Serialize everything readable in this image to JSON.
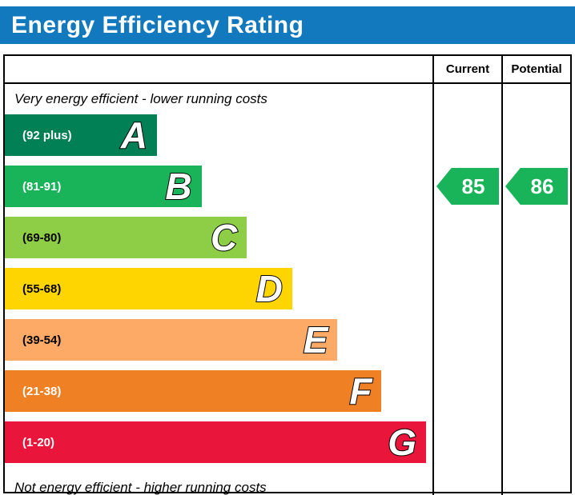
{
  "title": "Energy Efficiency Rating",
  "columns": {
    "current": "Current",
    "potential": "Potential"
  },
  "notes": {
    "top": "Very energy efficient - lower running costs",
    "bottom": "Not energy efficient - higher running costs"
  },
  "colors": {
    "title_bar_bg": "#1279be",
    "title_text": "#ffffff",
    "border": "#000000",
    "arrow_text": "#ffffff"
  },
  "chart_data": {
    "type": "bar",
    "subtype": "epc-energy-efficiency-rating",
    "orientation": "horizontal",
    "bands": [
      {
        "letter": "A",
        "range": "(92 plus)",
        "score_range": [
          92,
          100
        ],
        "color": "#008054",
        "label_color": "#ffffff",
        "width_pct": 35.6
      },
      {
        "letter": "B",
        "range": "(81-91)",
        "score_range": [
          81,
          91
        ],
        "color": "#19b459",
        "label_color": "#ffffff",
        "width_pct": 46.0
      },
      {
        "letter": "C",
        "range": "(69-80)",
        "score_range": [
          69,
          80
        ],
        "color": "#8dce46",
        "label_color": "#000000",
        "width_pct": 56.6
      },
      {
        "letter": "D",
        "range": "(55-68)",
        "score_range": [
          55,
          68
        ],
        "color": "#ffd500",
        "label_color": "#000000",
        "width_pct": 67.2
      },
      {
        "letter": "E",
        "range": "(39-54)",
        "score_range": [
          39,
          54
        ],
        "color": "#fcaa65",
        "label_color": "#000000",
        "width_pct": 77.8
      },
      {
        "letter": "F",
        "range": "(21-38)",
        "score_range": [
          21,
          38
        ],
        "color": "#ef8023",
        "label_color": "#ffffff",
        "width_pct": 88.1
      },
      {
        "letter": "G",
        "range": "(1-20)",
        "score_range": [
          1,
          20
        ],
        "color": "#e9153b",
        "label_color": "#ffffff",
        "width_pct": 98.5
      }
    ],
    "current": {
      "value": 85,
      "band": "B",
      "color": "#19b459"
    },
    "potential": {
      "value": 86,
      "band": "B",
      "color": "#19b459"
    }
  }
}
